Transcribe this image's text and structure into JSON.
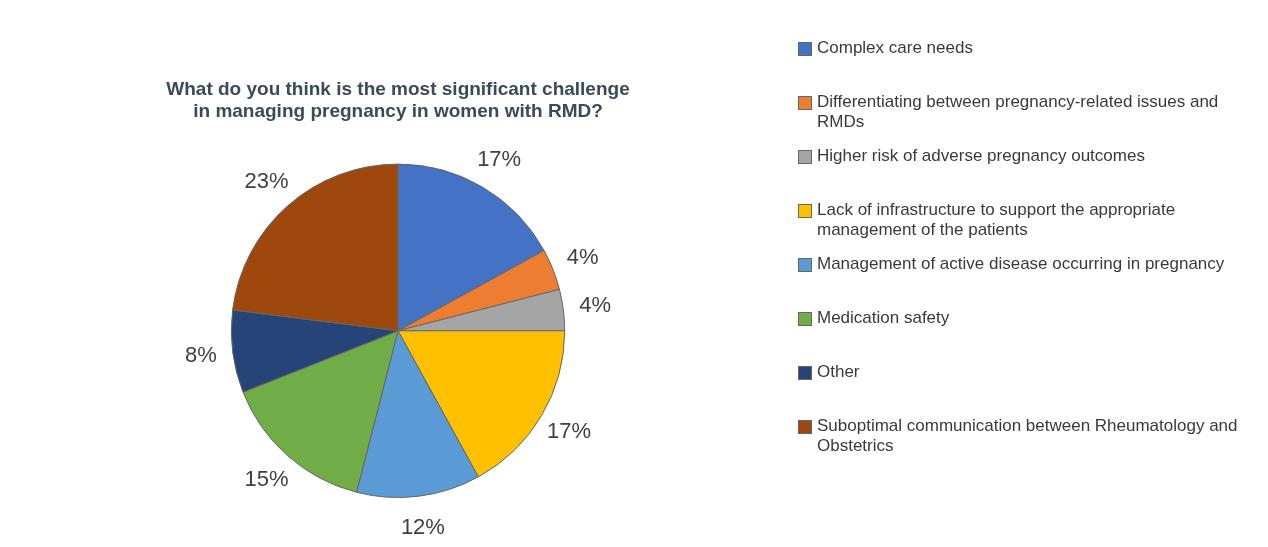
{
  "chart_data": {
    "type": "pie",
    "title": "What do you think is the most significant challenge\nin managing pregnancy in women with RMD?",
    "categories": [
      "Complex care needs",
      "Differentiating between pregnancy-related issues and RMDs",
      "Higher risk of adverse pregnancy outcomes",
      "Lack of infrastructure to support the appropriate management of the patients",
      "Management of active disease occurring in pregnancy",
      "Medication safety",
      "Other",
      "Suboptimal communication between Rheumatology and Obstetrics"
    ],
    "values": [
      17,
      4,
      4,
      17,
      12,
      15,
      8,
      23
    ],
    "value_labels": [
      "17%",
      "4%",
      "4%",
      "17%",
      "12%",
      "15%",
      "8%",
      "23%"
    ],
    "colors": [
      "#4472c4",
      "#ed7d31",
      "#a5a5a5",
      "#ffc000",
      "#5b9bd5",
      "#70ad47",
      "#264478",
      "#9e480e"
    ],
    "legend": "right"
  }
}
